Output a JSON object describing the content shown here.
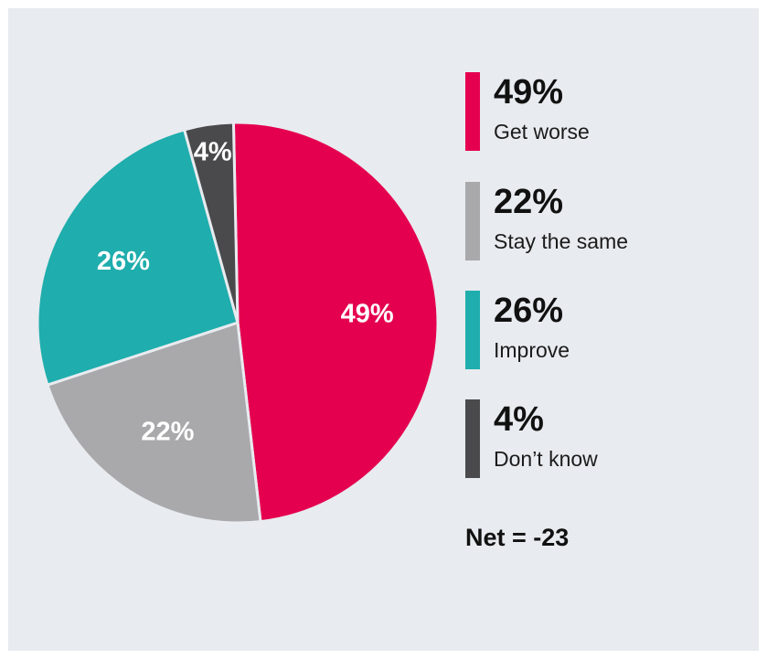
{
  "chart_data": {
    "type": "pie",
    "slices": [
      {
        "label": "Get worse",
        "value": 49,
        "display": "49%",
        "color": "#e5004f"
      },
      {
        "label": "Stay the same",
        "value": 22,
        "display": "22%",
        "color": "#a9a9ab"
      },
      {
        "label": "Improve",
        "value": 26,
        "display": "26%",
        "color": "#1fadad"
      },
      {
        "label": "Don’t know",
        "value": 4,
        "display": "4%",
        "color": "#4a4a4c"
      }
    ],
    "legend_position": "right",
    "net_text": "Net = -23"
  },
  "colors": {
    "panel_background": "#e8ebef",
    "slice_border": "#e8ebef"
  }
}
